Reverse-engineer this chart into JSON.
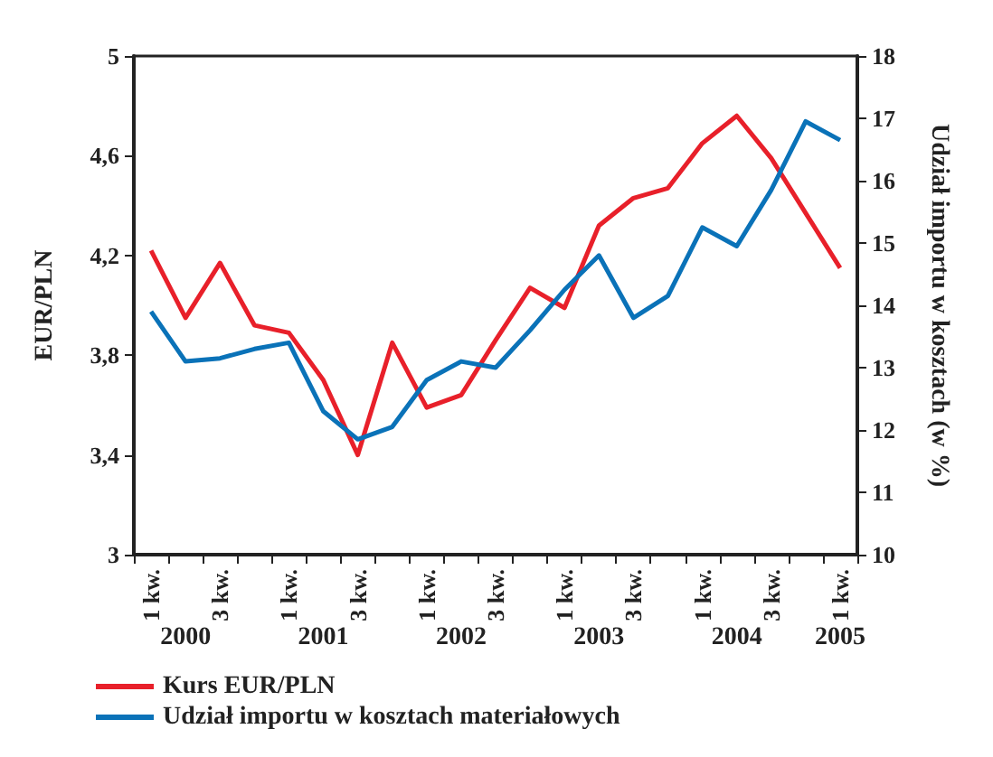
{
  "chart_data": {
    "type": "line",
    "ylabel": "EUR/PLN",
    "y2label": "Udział importu w kosztach (w %)",
    "categories": [
      "1 kw.",
      null,
      "3 kw.",
      null,
      "1 kw.",
      null,
      "3 kw.",
      null,
      "1 kw.",
      null,
      "3 kw.",
      null,
      "1 kw.",
      null,
      "3 kw.",
      null,
      "1 kw.",
      null,
      "3 kw.",
      null,
      "1 kw."
    ],
    "annotations": [
      "2000",
      "2001",
      "2002",
      "2003",
      "2004",
      "2005"
    ],
    "series": [
      {
        "name": "Kurs EUR/PLN",
        "color": "#e8202a",
        "values": [
          4.22,
          3.95,
          4.17,
          3.92,
          3.89,
          3.7,
          3.4,
          3.85,
          3.59,
          3.64,
          3.86,
          4.07,
          3.99,
          4.32,
          4.43,
          4.47,
          4.65,
          4.76,
          4.59,
          4.37,
          4.15
        ]
      },
      {
        "name": "Udział importu w kosztach materiałowych",
        "color": "#0a72b8",
        "axis": "y2",
        "values": [
          13.9,
          13.1,
          13.15,
          13.3,
          13.4,
          12.3,
          11.85,
          12.05,
          12.8,
          13.1,
          13.0,
          13.6,
          14.25,
          14.8,
          13.8,
          14.15,
          15.25,
          14.95,
          15.85,
          16.95,
          16.65
        ]
      }
    ],
    "ylim": [
      3,
      5
    ],
    "yticks": [
      {
        "value": 3,
        "label": "3"
      },
      {
        "value": 3.4,
        "label": "3,4"
      },
      {
        "value": 3.8,
        "label": "3,8"
      },
      {
        "value": 4.2,
        "label": "4,2"
      },
      {
        "value": 4.6,
        "label": "4,6"
      },
      {
        "value": 5,
        "label": "5"
      }
    ],
    "y2lim": [
      10,
      18
    ],
    "y2ticks": [
      10,
      11,
      12,
      13,
      14,
      15,
      16,
      17,
      18
    ],
    "grid": false,
    "legend": "bottom left",
    "marker": "none",
    "line_style": "solid"
  }
}
